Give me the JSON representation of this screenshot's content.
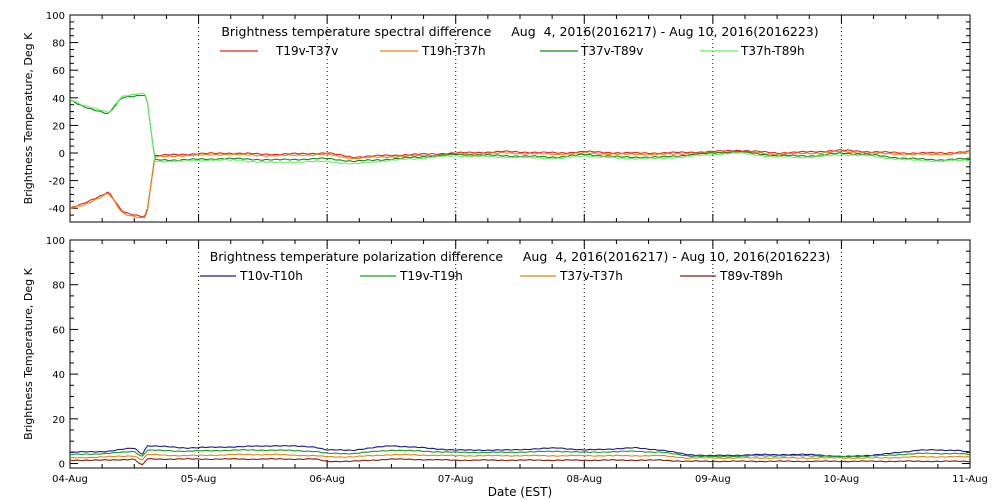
{
  "chart_data": [
    {
      "type": "line",
      "title": "Brightness temperature spectral difference     Aug  4, 2016(2016217) - Aug 10, 2016(2016223)",
      "xlabel": "",
      "ylabel": "Brightness Temperature, Deg K",
      "ylim": [
        -50,
        100
      ],
      "xlim": [
        0,
        7
      ],
      "y_ticks": [
        -40,
        -20,
        0,
        20,
        40,
        60,
        80,
        100
      ],
      "x_ticks": [
        0,
        1,
        2,
        3,
        4,
        5,
        6,
        7
      ],
      "x_tick_labels": [
        "04-Aug",
        "05-Aug",
        "06-Aug",
        "07-Aug",
        "08-Aug",
        "09-Aug",
        "10-Aug",
        "11-Aug"
      ],
      "show_x_tick_labels": false,
      "grid": "dotted vertical lines at each day",
      "legend_position": "top",
      "x": [
        0,
        0.1,
        0.3,
        0.4,
        0.45,
        0.58,
        0.6,
        0.66,
        0.85,
        1.2,
        1.6,
        2.0,
        2.2,
        2.4,
        2.7,
        3.0,
        3.4,
        3.8,
        4.0,
        4.3,
        4.6,
        5.0,
        5.2,
        5.5,
        5.8,
        6.0,
        6.2,
        6.5,
        6.8,
        7.0
      ],
      "series": [
        {
          "name": "T19v-T37v",
          "color": "#e8201c",
          "values": [
            -40,
            -37,
            -28,
            -42,
            -44,
            -46,
            -42,
            -2,
            -1,
            0,
            -1,
            0,
            -3,
            -2,
            -1,
            0,
            1,
            0,
            1,
            0,
            0,
            1,
            2,
            0,
            1,
            2,
            1,
            0,
            0,
            1
          ]
        },
        {
          "name": "T19h-T37h",
          "color": "#f08010",
          "values": [
            -40,
            -38,
            -29,
            -43,
            -45,
            -47,
            -43,
            -3,
            -2,
            -1,
            -2,
            -1,
            -4,
            -3,
            -2,
            -1,
            0,
            -1,
            0,
            -1,
            -1,
            0,
            1,
            -1,
            0,
            1,
            0,
            -1,
            -1,
            0
          ]
        },
        {
          "name": "T37v-T89v",
          "color": "#16861a",
          "values": [
            38,
            34,
            28,
            40,
            41,
            42,
            38,
            -5,
            -5,
            -4,
            -5,
            -4,
            -6,
            -5,
            -3,
            -1,
            -2,
            -3,
            -1,
            -3,
            -3,
            0,
            1,
            -2,
            -2,
            0,
            -1,
            -4,
            -5,
            -4
          ]
        },
        {
          "name": "T37h-T89h",
          "color": "#66ee66",
          "values": [
            39,
            35,
            29,
            41,
            42,
            43,
            39,
            -6,
            -6,
            -5,
            -7,
            -6,
            -8,
            -6,
            -4,
            -2,
            -3,
            -4,
            -2,
            -4,
            -4,
            -1,
            0,
            -3,
            -3,
            -1,
            -2,
            -5,
            -6,
            -5
          ]
        }
      ]
    },
    {
      "type": "line",
      "title": "Brightness temperature polarization difference     Aug  4, 2016(2016217) - Aug 10, 2016(2016223)",
      "xlabel": "Date (EST)",
      "ylabel": "Brightness Temperature, Deg K",
      "ylim": [
        -2,
        100
      ],
      "xlim": [
        0,
        7
      ],
      "y_ticks": [
        0,
        20,
        40,
        60,
        80,
        100
      ],
      "x_ticks": [
        0,
        1,
        2,
        3,
        4,
        5,
        6,
        7
      ],
      "x_tick_labels": [
        "04-Aug",
        "05-Aug",
        "06-Aug",
        "07-Aug",
        "08-Aug",
        "09-Aug",
        "10-Aug",
        "11-Aug"
      ],
      "show_x_tick_labels": true,
      "grid": "dotted vertical lines at each day",
      "legend_position": "top",
      "x": [
        0,
        0.3,
        0.5,
        0.56,
        0.6,
        0.9,
        1.3,
        1.6,
        1.9,
        2.0,
        2.2,
        2.5,
        3.0,
        3.4,
        3.8,
        4.0,
        4.4,
        4.6,
        4.8,
        5.0,
        5.4,
        5.8,
        6.0,
        6.3,
        6.6,
        6.9,
        7.0
      ],
      "series": [
        {
          "name": "T10v-T10h",
          "color": "#1a1a9a",
          "values": [
            5,
            5.5,
            7,
            4,
            8,
            7,
            7.5,
            8,
            7.5,
            6,
            6,
            8,
            6,
            6,
            7,
            6,
            7,
            6,
            4,
            3.5,
            4,
            4,
            3,
            4,
            6,
            6,
            5
          ]
        },
        {
          "name": "T19v-T19h",
          "color": "#16a01a",
          "values": [
            4,
            4.5,
            5.5,
            3,
            6,
            5.5,
            6,
            6,
            5.5,
            4.5,
            4.5,
            6,
            5,
            5,
            5.5,
            5,
            5.5,
            5,
            3.5,
            3,
            3.5,
            3.5,
            3,
            3.5,
            4.5,
            4.5,
            4
          ]
        },
        {
          "name": "T37v-T37h",
          "color": "#f08010",
          "values": [
            2.5,
            3,
            3.5,
            1.5,
            4,
            3.5,
            4,
            4,
            3.5,
            3,
            3,
            4,
            3.5,
            3.5,
            3.5,
            3.5,
            3.5,
            3.5,
            2.5,
            2.5,
            2.5,
            2.5,
            2.5,
            2.5,
            3,
            3,
            3
          ]
        },
        {
          "name": "T89v-T89h",
          "color": "#8a1a10",
          "values": [
            1.5,
            1.5,
            2,
            -1,
            2,
            2,
            2,
            2,
            2,
            1,
            1,
            2,
            1.5,
            1.5,
            1.5,
            1.5,
            1.5,
            1.5,
            1,
            1,
            1,
            1,
            1,
            1,
            1,
            1,
            1
          ]
        }
      ]
    }
  ]
}
